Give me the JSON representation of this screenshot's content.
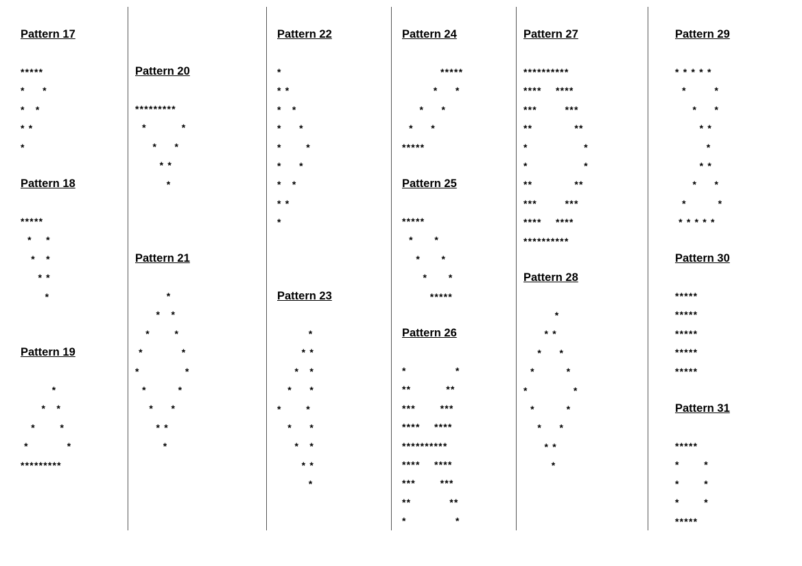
{
  "patterns": [
    {
      "title": "Pattern 17",
      "lines": [
        "*****",
        "*     *",
        "*   *",
        "* *",
        "*"
      ]
    },
    {
      "title": "Pattern 18",
      "lines": [
        "*****",
        "  *    *",
        "   *   *",
        "     * *",
        "       *"
      ]
    },
    {
      "title": "Pattern 19",
      "lines": [
        "         *",
        "      *   *",
        "   *       *",
        " *           *",
        "*********"
      ]
    },
    {
      "title": "Pattern 20",
      "lines": [
        "*********",
        "  *          *",
        "     *     *",
        "       * *",
        "         *"
      ]
    },
    {
      "title": "Pattern 21",
      "lines": [
        "         *",
        "      *   *",
        "   *       *",
        " *           *",
        "*             *",
        "  *         *",
        "    *     *",
        "      * *",
        "        *"
      ]
    },
    {
      "title": "Pattern 22",
      "lines": [
        "*",
        "* *",
        "*   *",
        "*     *",
        "*       *",
        "*     *",
        "*   *",
        "* *",
        "*"
      ]
    },
    {
      "title": "Pattern 23",
      "lines": [
        "         *",
        "       * *",
        "     *   *",
        "   *     *",
        "*       *",
        "   *     *",
        "     *   *",
        "       * *",
        "         *"
      ]
    },
    {
      "title": "Pattern 24",
      "lines": [
        "           *****",
        "         *     *",
        "     *     *",
        "  *     *",
        "*****"
      ]
    },
    {
      "title": "Pattern 25",
      "lines": [
        "*****",
        "  *      *",
        "    *      *",
        "      *      *",
        "        *****"
      ]
    },
    {
      "title": "Pattern 26",
      "lines": [
        "*              *",
        "**          **",
        "***       ***",
        "****    ****",
        "**********",
        "****    ****",
        "***       ***",
        "**           **",
        "*              *"
      ]
    },
    {
      "title": "Pattern 27",
      "lines": [
        "**********",
        "****    ****",
        "***        ***",
        "**            **",
        "*                *",
        "*                *",
        "**            **",
        "***        ***",
        "****    ****",
        "**********"
      ]
    },
    {
      "title": "Pattern 28",
      "lines": [
        "         *",
        "      * *",
        "    *     *",
        "  *         *",
        "*             *",
        "  *         *",
        "    *     *",
        "      * *",
        "        *"
      ]
    },
    {
      "title": "Pattern 29",
      "lines": [
        "* * * * *",
        "  *        *",
        "     *     *",
        "       * *",
        "         *",
        "       * *",
        "     *     *",
        "  *         *",
        " * * * * *"
      ]
    },
    {
      "title": "Pattern 30",
      "lines": [
        "*****",
        "*****",
        "*****",
        "*****",
        "*****"
      ]
    },
    {
      "title": "Pattern 31",
      "lines": [
        "*****",
        "*       *",
        "*       *",
        "*       *",
        "*****"
      ]
    }
  ]
}
